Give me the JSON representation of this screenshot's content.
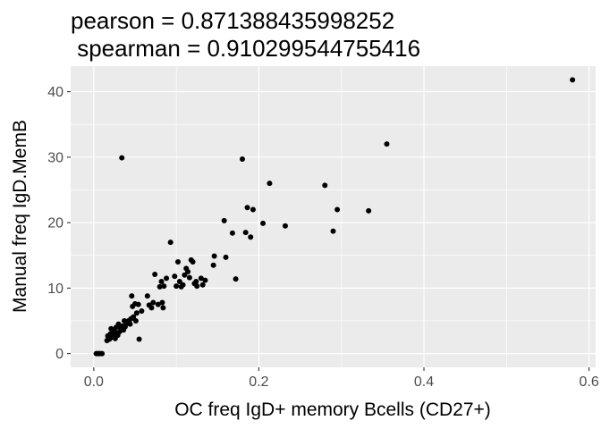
{
  "chart_data": {
    "type": "scatter",
    "title_lines": [
      "pearson = 0.871388435998252",
      " spearman = 0.910299544755416"
    ],
    "xlabel": "OC freq IgD+ memory Bcells (CD27+)",
    "ylabel": "Manual freq IgD.MemB",
    "xlim": [
      -0.028,
      0.608
    ],
    "ylim": [
      -2.1,
      43.9
    ],
    "x_ticks": [
      0.0,
      0.2,
      0.4,
      0.6
    ],
    "x_tick_labels": [
      "0.0",
      "0.2",
      "0.4",
      "0.6"
    ],
    "y_ticks": [
      0,
      10,
      20,
      30,
      40
    ],
    "y_tick_labels": [
      "0",
      "10",
      "20",
      "30",
      "40"
    ],
    "grid": true,
    "panel_color": "#ebebeb",
    "grid_color": "#ffffff",
    "point_color": "#000000",
    "points": [
      [
        0.003,
        0.0
      ],
      [
        0.005,
        0.0
      ],
      [
        0.006,
        0.0
      ],
      [
        0.008,
        0.0
      ],
      [
        0.01,
        0.0
      ],
      [
        0.016,
        2.0
      ],
      [
        0.017,
        2.7
      ],
      [
        0.019,
        2.2
      ],
      [
        0.02,
        3.0
      ],
      [
        0.021,
        3.8
      ],
      [
        0.023,
        2.5
      ],
      [
        0.024,
        3.2
      ],
      [
        0.025,
        3.5
      ],
      [
        0.026,
        2.3
      ],
      [
        0.027,
        4.0
      ],
      [
        0.028,
        3.0
      ],
      [
        0.029,
        2.8
      ],
      [
        0.03,
        4.5
      ],
      [
        0.031,
        3.3
      ],
      [
        0.032,
        4.0
      ],
      [
        0.033,
        3.8
      ],
      [
        0.034,
        29.9
      ],
      [
        0.035,
        4.2
      ],
      [
        0.036,
        3.6
      ],
      [
        0.037,
        5.0
      ],
      [
        0.038,
        4.1
      ],
      [
        0.04,
        4.6
      ],
      [
        0.042,
        5.0
      ],
      [
        0.044,
        4.5
      ],
      [
        0.045,
        5.3
      ],
      [
        0.046,
        8.8
      ],
      [
        0.047,
        7.2
      ],
      [
        0.048,
        5.6
      ],
      [
        0.05,
        7.6
      ],
      [
        0.051,
        5.0
      ],
      [
        0.052,
        6.2
      ],
      [
        0.054,
        7.5
      ],
      [
        0.055,
        2.2
      ],
      [
        0.058,
        6.5
      ],
      [
        0.065,
        8.8
      ],
      [
        0.067,
        7.4
      ],
      [
        0.07,
        7.0
      ],
      [
        0.072,
        7.8
      ],
      [
        0.074,
        12.1
      ],
      [
        0.078,
        7.5
      ],
      [
        0.08,
        10.2
      ],
      [
        0.082,
        11.0
      ],
      [
        0.083,
        7.8
      ],
      [
        0.084,
        7.0
      ],
      [
        0.085,
        10.3
      ],
      [
        0.088,
        11.5
      ],
      [
        0.093,
        17.0
      ],
      [
        0.098,
        11.8
      ],
      [
        0.1,
        10.3
      ],
      [
        0.102,
        14.0
      ],
      [
        0.104,
        11.0
      ],
      [
        0.106,
        10.2
      ],
      [
        0.108,
        10.5
      ],
      [
        0.11,
        12.0
      ],
      [
        0.112,
        13.0
      ],
      [
        0.114,
        12.5
      ],
      [
        0.116,
        11.6
      ],
      [
        0.118,
        14.3
      ],
      [
        0.12,
        14.0
      ],
      [
        0.122,
        10.7
      ],
      [
        0.124,
        11.0
      ],
      [
        0.125,
        10.3
      ],
      [
        0.13,
        11.5
      ],
      [
        0.132,
        10.5
      ],
      [
        0.135,
        11.2
      ],
      [
        0.145,
        13.5
      ],
      [
        0.146,
        14.9
      ],
      [
        0.158,
        20.3
      ],
      [
        0.16,
        14.7
      ],
      [
        0.168,
        18.4
      ],
      [
        0.172,
        11.4
      ],
      [
        0.18,
        29.7
      ],
      [
        0.184,
        18.5
      ],
      [
        0.186,
        22.3
      ],
      [
        0.19,
        17.8
      ],
      [
        0.193,
        22.0
      ],
      [
        0.205,
        19.9
      ],
      [
        0.213,
        26.0
      ],
      [
        0.232,
        19.5
      ],
      [
        0.28,
        25.7
      ],
      [
        0.29,
        18.7
      ],
      [
        0.295,
        22.0
      ],
      [
        0.333,
        21.8
      ],
      [
        0.355,
        32.0
      ],
      [
        0.58,
        41.8
      ]
    ]
  }
}
